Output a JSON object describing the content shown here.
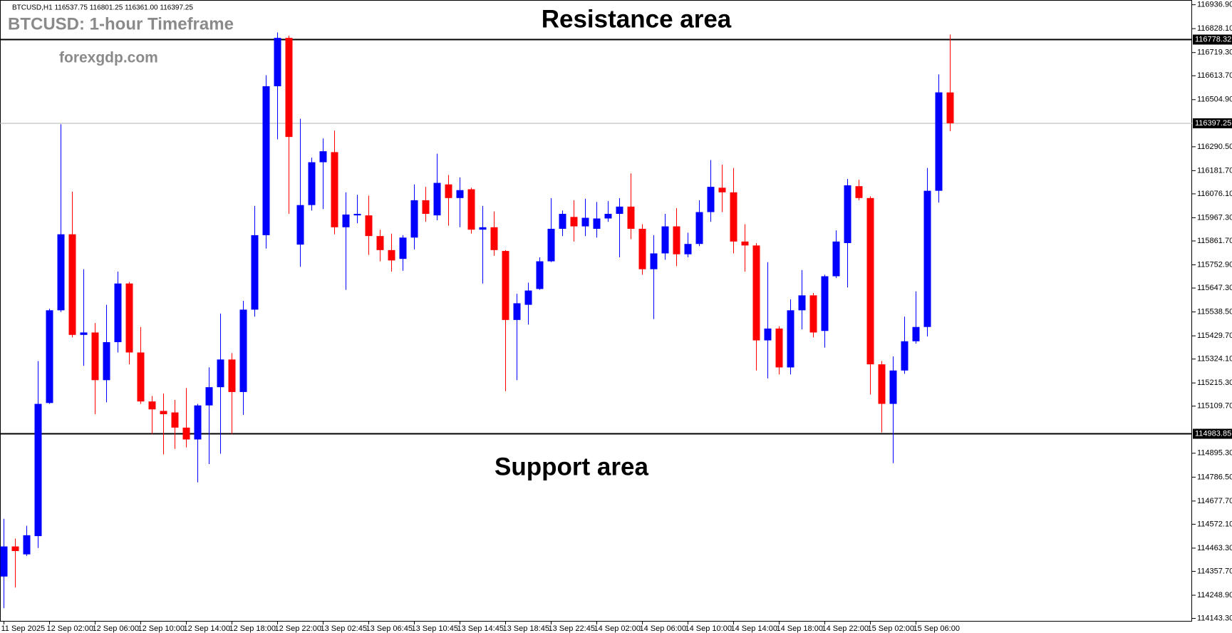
{
  "chart_data": {
    "type": "candlestick",
    "header": "BTCUSD,H1 116537.75 116801.25 116361.00 116397.25",
    "title": "BTCUSD: 1-hour Timeframe",
    "watermark": "forexgdp.com",
    "annotations": {
      "resistance": "Resistance area",
      "support": "Support area"
    },
    "levels": {
      "resistance": 116778.32,
      "support": 114983.85,
      "last_price": 116397.25
    },
    "up_color": "#0000ff",
    "down_color": "#ff0000",
    "categories": [
      "11 Sep 2025",
      null,
      null,
      null,
      "12 Sep 02:00",
      null,
      null,
      null,
      "12 Sep 06:00",
      null,
      null,
      null,
      "12 Sep 10:00",
      null,
      null,
      null,
      "12 Sep 14:00",
      null,
      null,
      null,
      "12 Sep 18:00",
      null,
      null,
      null,
      "12 Sep 22:00",
      null,
      null,
      null,
      "13 Sep 02:45",
      null,
      null,
      null,
      "13 Sep 06:45",
      null,
      null,
      null,
      "13 Sep 10:45",
      null,
      null,
      null,
      "13 Sep 14:45",
      null,
      null,
      null,
      "13 Sep 18:45",
      null,
      null,
      null,
      "13 Sep 22:45",
      null,
      null,
      null,
      "14 Sep 02:00",
      null,
      null,
      null,
      "14 Sep 06:00",
      null,
      null,
      null,
      "14 Sep 10:00",
      null,
      null,
      null,
      "14 Sep 14:00",
      null,
      null,
      null,
      "14 Sep 18:00",
      null,
      null,
      null,
      "14 Sep 22:00",
      null,
      null,
      null,
      "15 Sep 02:00",
      null,
      null,
      null,
      "15 Sep 06:00",
      null,
      null,
      null
    ],
    "open": [
      114334,
      114471,
      114435,
      114518,
      115124,
      115546,
      115892,
      115434,
      115445,
      115228,
      115401,
      115668,
      115354,
      115131,
      115088,
      115081,
      115012,
      114958,
      115113,
      115196,
      115322,
      115174,
      115549,
      115888,
      116566,
      116786,
      115845,
      116025,
      116220,
      116266,
      115924,
      115978,
      115978,
      115884,
      115820,
      115780,
      115877,
      116047,
      115978,
      116119,
      116057,
      116097,
      115913,
      115924,
      115816,
      115502,
      115571,
      115643,
      115769,
      115917,
      115971,
      115928,
      115917,
      115964,
      115985,
      116018,
      115917,
      115733,
      115805,
      115928,
      115801,
      115848,
      115993,
      116104,
      116083,
      115859,
      115841,
      115409,
      115463,
      115286,
      115546,
      115614,
      115452,
      115701,
      115852,
      116111,
      116057,
      115300,
      115120,
      115272,
      115405,
      115470,
      116090,
      116537.75
    ],
    "high": [
      114597,
      114507,
      114565,
      115315,
      115553,
      116393,
      116086,
      115733,
      115488,
      115571,
      115722,
      115675,
      115470,
      115156,
      115167,
      115138,
      115192,
      115120,
      115286,
      115531,
      115351,
      115589,
      116021,
      116616,
      116811,
      116796,
      116418,
      116241,
      116328,
      116364,
      116083,
      116072,
      116068,
      115913,
      115895,
      115888,
      116119,
      116108,
      116259,
      116162,
      116151,
      116104,
      116021,
      115996,
      115820,
      115621,
      115672,
      115787,
      116057,
      116000,
      116047,
      116054,
      116039,
      116043,
      116057,
      116169,
      115938,
      115888,
      115985,
      116011,
      115899,
      116047,
      116230,
      116209,
      116194,
      115938,
      115852,
      115765,
      115473,
      115596,
      115729,
      115625,
      115708,
      115910,
      116144,
      116140,
      116065,
      115315,
      115336,
      115517,
      115632,
      116194,
      116620,
      116801.25
    ],
    "low": [
      114190,
      114284,
      114428,
      114464,
      115120,
      115538,
      115423,
      115293,
      115073,
      115127,
      115354,
      115300,
      115120,
      114983,
      114890,
      114915,
      114922,
      114763,
      114846,
      114893,
      114983,
      115070,
      115517,
      115827,
      116324,
      115985,
      115744,
      116000,
      116007,
      115892,
      115639,
      115942,
      115798,
      115769,
      115722,
      115726,
      115823,
      115949,
      115956,
      115931,
      115924,
      115895,
      115668,
      115794,
      115178,
      115228,
      115481,
      115639,
      115765,
      115884,
      115859,
      115884,
      115877,
      115949,
      115787,
      115870,
      115708,
      115506,
      115776,
      115747,
      115787,
      115838,
      115949,
      115993,
      115805,
      115722,
      115272,
      115236,
      115254,
      115254,
      115459,
      115423,
      115376,
      115693,
      115650,
      116047,
      115163,
      114990,
      114850,
      115257,
      115394,
      115427,
      116036,
      116361.0
    ],
    "close": [
      114471,
      114450,
      114522,
      115120,
      115546,
      115892,
      115434,
      115445,
      115228,
      115401,
      115668,
      115354,
      115131,
      115095,
      115073,
      115012,
      114958,
      115113,
      115196,
      115322,
      115174,
      115549,
      115888,
      116566,
      116786,
      116335,
      116025,
      116220,
      116270,
      115924,
      115982,
      115985,
      115884,
      115820,
      115773,
      115877,
      116047,
      115985,
      116126,
      116057,
      116093,
      115913,
      115924,
      115820,
      115502,
      115578,
      115636,
      115769,
      115917,
      115985,
      115928,
      115967,
      115964,
      115985,
      116018,
      115917,
      115733,
      115805,
      115928,
      115801,
      115848,
      115993,
      116108,
      116083,
      115859,
      115841,
      115409,
      115463,
      115286,
      115546,
      115614,
      115445,
      115701,
      115859,
      116115,
      116057,
      115300,
      115120,
      115272,
      115405,
      115470,
      116090,
      116538,
      116397.25
    ],
    "ylim": [
      114128.9,
      116958.5
    ],
    "yticks": [
      {
        "value": 116936.9,
        "label": "116936.90"
      },
      {
        "value": 116828.1,
        "label": "116828.10"
      },
      {
        "value": 116719.3,
        "label": "116719.30"
      },
      {
        "value": 116613.7,
        "label": "116613.70"
      },
      {
        "value": 116504.9,
        "label": "116504.90"
      },
      {
        "value": 116290.5,
        "label": "116290.50"
      },
      {
        "value": 116181.7,
        "label": "116181.70"
      },
      {
        "value": 116076.1,
        "label": "116076.10"
      },
      {
        "value": 115967.3,
        "label": "115967.30"
      },
      {
        "value": 115861.7,
        "label": "115861.70"
      },
      {
        "value": 115752.9,
        "label": "115752.90"
      },
      {
        "value": 115647.3,
        "label": "115647.30"
      },
      {
        "value": 115538.5,
        "label": "115538.50"
      },
      {
        "value": 115429.7,
        "label": "115429.70"
      },
      {
        "value": 115324.1,
        "label": "115324.10"
      },
      {
        "value": 115215.3,
        "label": "115215.30"
      },
      {
        "value": 115109.7,
        "label": "115109.70"
      },
      {
        "value": 114895.3,
        "label": "114895.30"
      },
      {
        "value": 114786.5,
        "label": "114786.50"
      },
      {
        "value": 114677.7,
        "label": "114677.70"
      },
      {
        "value": 114572.1,
        "label": "114572.10"
      },
      {
        "value": 114463.3,
        "label": "114463.30"
      },
      {
        "value": 114357.7,
        "label": "114357.70"
      },
      {
        "value": 114248.9,
        "label": "114248.90"
      },
      {
        "value": 114143.3,
        "label": "114143.30"
      }
    ]
  }
}
